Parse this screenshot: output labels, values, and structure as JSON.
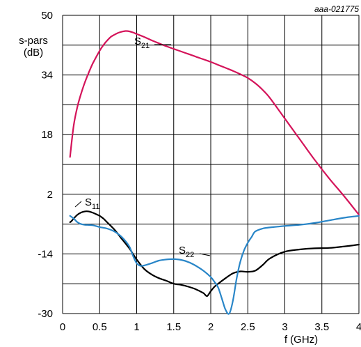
{
  "chart_data": {
    "type": "line",
    "reference": "aaa-021775",
    "ylabel": [
      "s-pars",
      "(dB)"
    ],
    "xlabel": "f (GHz)",
    "xlim": [
      0,
      4
    ],
    "ylim": [
      -30,
      50
    ],
    "x_ticks": [
      "0",
      "0.5",
      "1",
      "1.5",
      "2",
      "2.5",
      "3",
      "3.5",
      "4"
    ],
    "y_ticks": [
      "50",
      "34",
      "18",
      "2",
      "-14",
      "-30"
    ],
    "grid": true,
    "series": [
      {
        "name": "S21",
        "label_main": "S",
        "label_sub": "21",
        "color": "#d4145a",
        "x": [
          0.1,
          0.15,
          0.2,
          0.25,
          0.3,
          0.35,
          0.4,
          0.45,
          0.5,
          0.55,
          0.6,
          0.65,
          0.7,
          0.75,
          0.8,
          0.85,
          0.9,
          0.95,
          1.0,
          1.1,
          1.2,
          1.3,
          1.4,
          1.5,
          1.6,
          1.7,
          1.8,
          1.9,
          2.0,
          2.1,
          2.2,
          2.3,
          2.4,
          2.5,
          2.6,
          2.7,
          2.8,
          3.0,
          3.2,
          3.4,
          3.6,
          3.8,
          4.0
        ],
        "y": [
          12.0,
          20.5,
          25.5,
          29.0,
          32.0,
          34.5,
          36.8,
          38.7,
          40.5,
          42.0,
          43.2,
          44.2,
          44.8,
          45.3,
          45.6,
          45.8,
          45.7,
          45.4,
          45.0,
          44.2,
          43.3,
          42.5,
          41.7,
          41.0,
          40.3,
          39.6,
          38.9,
          38.2,
          37.5,
          36.7,
          35.9,
          35.1,
          34.2,
          33.2,
          31.8,
          30.0,
          27.8,
          22.3,
          16.8,
          11.3,
          6.2,
          1.5,
          -3.5
        ]
      },
      {
        "name": "S11",
        "label_main": "S",
        "label_sub": "11",
        "color": "#000000",
        "x": [
          0.1,
          0.12,
          0.15,
          0.2,
          0.25,
          0.3,
          0.35,
          0.4,
          0.45,
          0.5,
          0.55,
          0.6,
          0.7,
          0.8,
          0.9,
          1.0,
          1.1,
          1.2,
          1.3,
          1.4,
          1.5,
          1.6,
          1.7,
          1.8,
          1.9,
          1.95,
          2.0,
          2.05,
          2.1,
          2.2,
          2.3,
          2.4,
          2.5,
          2.6,
          2.7,
          2.8,
          3.0,
          3.2,
          3.4,
          3.6,
          3.8,
          4.0
        ],
        "y": [
          -5.5,
          -5.2,
          -4.5,
          -3.5,
          -2.9,
          -2.6,
          -2.6,
          -2.9,
          -3.3,
          -3.8,
          -4.5,
          -5.5,
          -7.5,
          -10.0,
          -12.5,
          -15.5,
          -18.0,
          -19.5,
          -20.5,
          -21.2,
          -22.0,
          -22.3,
          -22.8,
          -23.5,
          -24.5,
          -25.3,
          -24.0,
          -22.8,
          -22.0,
          -20.5,
          -19.2,
          -18.7,
          -18.8,
          -18.5,
          -17.0,
          -15.2,
          -13.4,
          -12.8,
          -12.5,
          -12.4,
          -12.0,
          -11.5
        ]
      },
      {
        "name": "S22",
        "label_main": "S",
        "label_sub": "22",
        "color": "#2986c8",
        "x": [
          0.1,
          0.15,
          0.2,
          0.25,
          0.3,
          0.4,
          0.5,
          0.6,
          0.7,
          0.8,
          0.9,
          0.95,
          1.0,
          1.05,
          1.1,
          1.2,
          1.3,
          1.4,
          1.5,
          1.6,
          1.7,
          1.8,
          1.9,
          2.0,
          2.05,
          2.1,
          2.15,
          2.2,
          2.25,
          2.3,
          2.35,
          2.4,
          2.45,
          2.5,
          2.55,
          2.6,
          2.7,
          2.8,
          2.9,
          3.0,
          3.2,
          3.4,
          3.6,
          3.8,
          4.0
        ],
        "y": [
          -3.8,
          -4.5,
          -5.5,
          -6.0,
          -6.2,
          -6.3,
          -6.8,
          -7.2,
          -8.0,
          -9.5,
          -12.0,
          -14.5,
          -16.5,
          -17.2,
          -17.1,
          -16.5,
          -15.8,
          -15.5,
          -15.4,
          -15.6,
          -16.2,
          -17.2,
          -18.5,
          -20.2,
          -21.5,
          -23.0,
          -26.0,
          -29.0,
          -30.0,
          -26.5,
          -20.5,
          -16.0,
          -13.0,
          -11.0,
          -9.5,
          -8.0,
          -7.2,
          -6.9,
          -6.7,
          -6.5,
          -6.2,
          -5.7,
          -5.0,
          -4.3,
          -3.8
        ]
      }
    ]
  }
}
